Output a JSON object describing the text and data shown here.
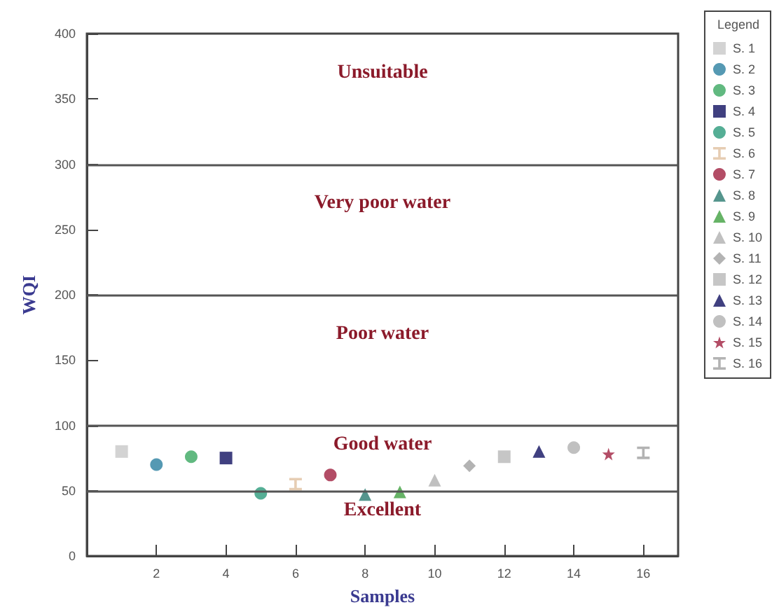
{
  "chart_data": {
    "type": "scatter",
    "xlabel": "Samples",
    "ylabel": "WQI",
    "legend_title": "Legend",
    "legend": "right",
    "grid": false,
    "xlim": [
      0,
      17
    ],
    "xticks": [
      2,
      4,
      6,
      8,
      10,
      12,
      14,
      16
    ],
    "ylim": [
      0,
      400
    ],
    "yticks": [
      0,
      50,
      100,
      150,
      200,
      250,
      300,
      350,
      400
    ],
    "ref_lines": [
      {
        "axis": "y",
        "value": 50,
        "color": "#555555"
      },
      {
        "axis": "y",
        "value": 100,
        "color": "#555555"
      },
      {
        "axis": "y",
        "value": 200,
        "color": "#555555"
      },
      {
        "axis": "y",
        "value": 300,
        "color": "#555555"
      }
    ],
    "annotations": [
      "Unsuitable",
      "Very poor water",
      "Poor water",
      "Good water",
      "Excellent"
    ],
    "series": [
      {
        "name": "S. 1",
        "color": "#c8c8c8",
        "marker": "square",
        "x": [
          1
        ],
        "values": [
          80
        ]
      },
      {
        "name": "S. 2",
        "color": "#2a7fa0",
        "marker": "circle",
        "x": [
          2
        ],
        "values": [
          70
        ]
      },
      {
        "name": "S. 3",
        "color": "#3aa860",
        "marker": "circle",
        "x": [
          3
        ],
        "values": [
          76
        ]
      },
      {
        "name": "S. 4",
        "color": "#101060",
        "marker": "square",
        "x": [
          4
        ],
        "values": [
          75
        ]
      },
      {
        "name": "S. 5",
        "color": "#2a9a7a",
        "marker": "circle",
        "x": [
          5
        ],
        "values": [
          48
        ]
      },
      {
        "name": "S. 6",
        "color": "#e0c0a0",
        "marker": "cross",
        "x": [
          6
        ],
        "values": [
          55
        ]
      },
      {
        "name": "S. 7",
        "color": "#a02040",
        "marker": "circle",
        "x": [
          7
        ],
        "values": [
          62
        ]
      },
      {
        "name": "S. 8",
        "color": "#2a7a70",
        "marker": "triangle",
        "x": [
          8
        ],
        "values": [
          47
        ]
      },
      {
        "name": "S. 9",
        "color": "#40a040",
        "marker": "triangle",
        "x": [
          9
        ],
        "values": [
          49
        ]
      },
      {
        "name": "S. 10",
        "color": "#b0b0b0",
        "marker": "triangle",
        "x": [
          10
        ],
        "values": [
          58
        ]
      },
      {
        "name": "S. 11",
        "color": "#a0a0a0",
        "marker": "diamond",
        "x": [
          11
        ],
        "values": [
          69
        ]
      },
      {
        "name": "S. 12",
        "color": "#b8b8b8",
        "marker": "square",
        "x": [
          12
        ],
        "values": [
          76
        ]
      },
      {
        "name": "S. 13",
        "color": "#101060",
        "marker": "triangle",
        "x": [
          13
        ],
        "values": [
          80
        ]
      },
      {
        "name": "S. 14",
        "color": "#b0b0b0",
        "marker": "circle",
        "x": [
          14
        ],
        "values": [
          83
        ]
      },
      {
        "name": "S. 15",
        "color": "#a02040",
        "marker": "star",
        "x": [
          15
        ],
        "values": [
          78
        ]
      },
      {
        "name": "S. 16",
        "color": "#a0a0a0",
        "marker": "cross",
        "x": [
          16
        ],
        "values": [
          79
        ]
      }
    ]
  }
}
